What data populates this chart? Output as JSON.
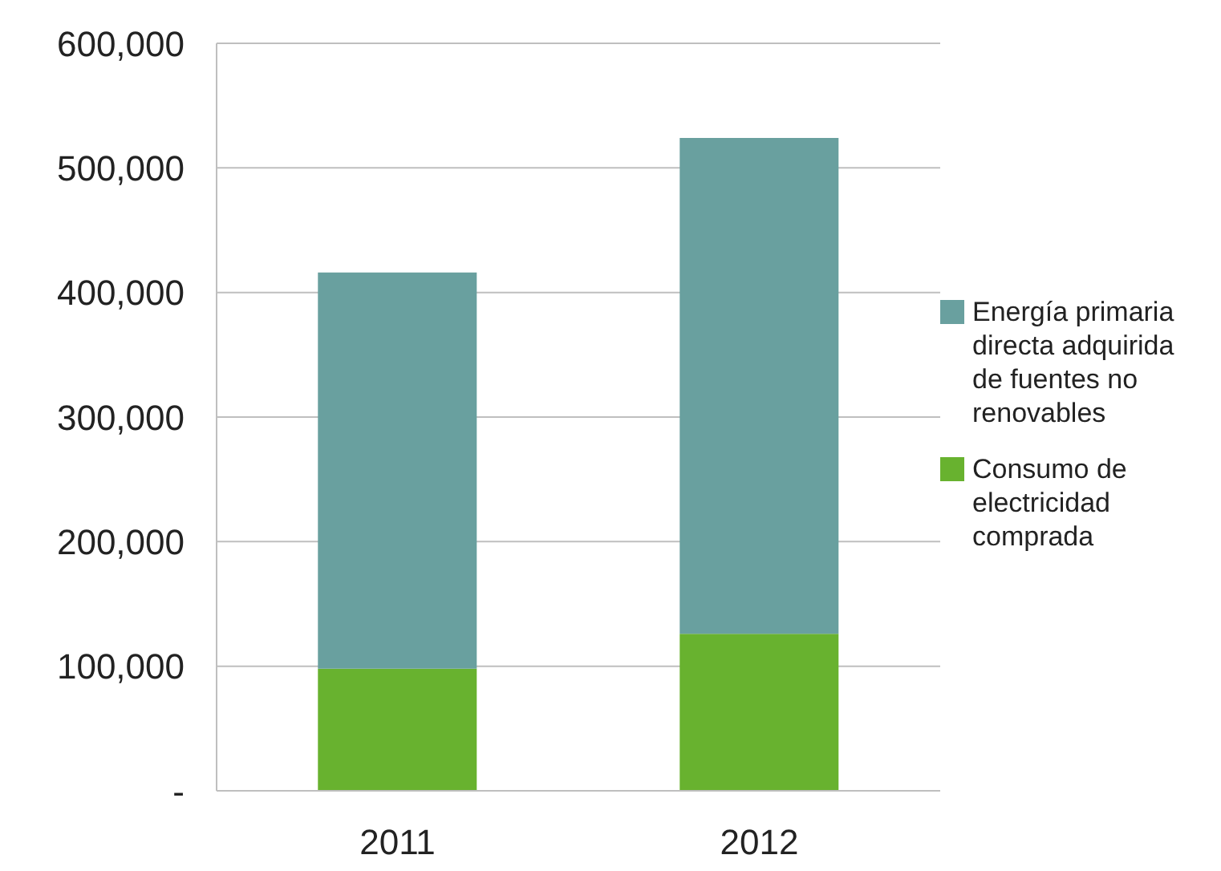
{
  "chart_data": {
    "type": "bar",
    "stacked": true,
    "categories": [
      "2011",
      "2012"
    ],
    "series": [
      {
        "name": "Consumo de electricidad comprada",
        "color": "#68b22f",
        "values": [
          98000,
          126000
        ]
      },
      {
        "name": "Energía primaria directa adquirida de fuentes no renovables",
        "color": "#69a09f",
        "values": [
          318000,
          398000
        ]
      }
    ],
    "ylim": [
      0,
      600000
    ],
    "yticks": [
      {
        "value": 0,
        "label": "-"
      },
      {
        "value": 100000,
        "label": "100,000"
      },
      {
        "value": 200000,
        "label": "200,000"
      },
      {
        "value": 300000,
        "label": "300,000"
      },
      {
        "value": 400000,
        "label": "400,000"
      },
      {
        "value": 500000,
        "label": "500,000"
      },
      {
        "value": 600000,
        "label": "600,000"
      }
    ],
    "grid": "y",
    "legend": "right"
  }
}
